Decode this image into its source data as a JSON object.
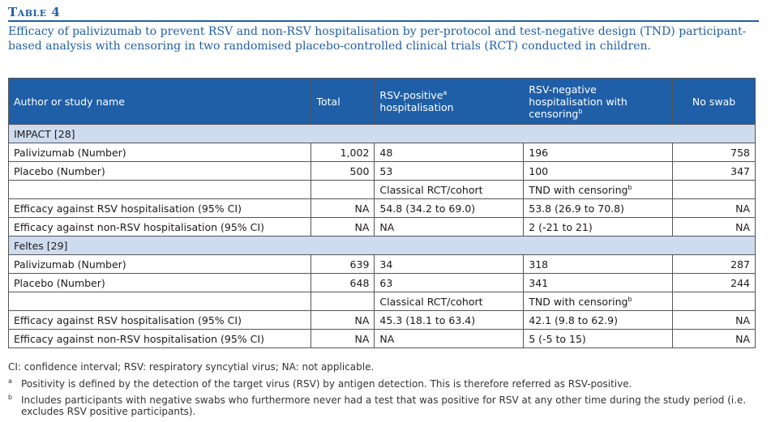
{
  "table_label": "Table 4",
  "caption": "Efficacy of palivizumab to prevent RSV and non-RSV hospitalisation by per-protocol and test-negative design (TND) participant-based analysis with censoring in two randomised placebo-controlled clinical trials (RCT) conducted in children.",
  "headers": {
    "author": "Author or study name",
    "total": "Total",
    "rsv_pos": "RSV-positive",
    "rsv_pos_sup": "a",
    "rsv_pos_2": "hospitalisation",
    "rsv_neg": "RSV-negative hospitalisation with censoring",
    "rsv_neg_sup": "b",
    "no_swab": "No swab"
  },
  "groups": [
    {
      "name": "IMPACT [28]",
      "rows": [
        {
          "label": "Palivizumab (Number)",
          "total": "1,002",
          "rsv_pos": "48",
          "rsv_neg": "196",
          "no_swab": "758"
        },
        {
          "label": "Placebo (Number)",
          "total": "500",
          "rsv_pos": "53",
          "rsv_neg": "100",
          "no_swab": "347"
        }
      ],
      "method": {
        "pos": "Classical RCT/cohort",
        "neg": "TND with censoring",
        "neg_sup": "b"
      },
      "efficacy": [
        {
          "label": "Efficacy against RSV hospitalisation (95% CI)",
          "total": "NA",
          "rsv_pos": "54.8 (34.2 to 69.0)",
          "rsv_neg": "53.8 (26.9 to 70.8)",
          "no_swab": "NA"
        },
        {
          "label": "Efficacy against non-RSV hospitalisation (95% CI)",
          "total": "NA",
          "rsv_pos": "NA",
          "rsv_neg": "2 (-21 to 21)",
          "no_swab": "NA"
        }
      ]
    },
    {
      "name": "Feltes [29]",
      "rows": [
        {
          "label": "Palivizumab (Number)",
          "total": "639",
          "rsv_pos": "34",
          "rsv_neg": "318",
          "no_swab": "287"
        },
        {
          "label": "Placebo (Number)",
          "total": "648",
          "rsv_pos": "63",
          "rsv_neg": "341",
          "no_swab": "244"
        }
      ],
      "method": {
        "pos": "Classical RCT/cohort",
        "neg": "TND with censoring",
        "neg_sup": "b"
      },
      "efficacy": [
        {
          "label": "Efficacy against RSV hospitalisation (95% CI)",
          "total": "NA",
          "rsv_pos": "45.3 (18.1 to 63.4)",
          "rsv_neg": "42.1 (9.8 to 62.9)",
          "no_swab": "NA"
        },
        {
          "label": "Efficacy against non-RSV hospitalisation (95% CI)",
          "total": "NA",
          "rsv_pos": "NA",
          "rsv_neg": "5 (-5 to 15)",
          "no_swab": "NA"
        }
      ]
    }
  ],
  "notes": {
    "abbrev": "CI: confidence interval; RSV: respiratory syncytial virus; NA: not applicable.",
    "fn_a_mark": "a",
    "fn_a": "Positivity is defined by the detection of the target virus (RSV) by antigen detection. This is therefore referred as RSV-positive.",
    "fn_b_mark": "b",
    "fn_b": "Includes participants with negative swabs who furthermore never had a test that was positive for RSV at any other time during the study period (i.e. excludes RSV positive participants)."
  },
  "colors": {
    "accent": "#1f5fa8",
    "group_bg": "#cfdcef"
  }
}
